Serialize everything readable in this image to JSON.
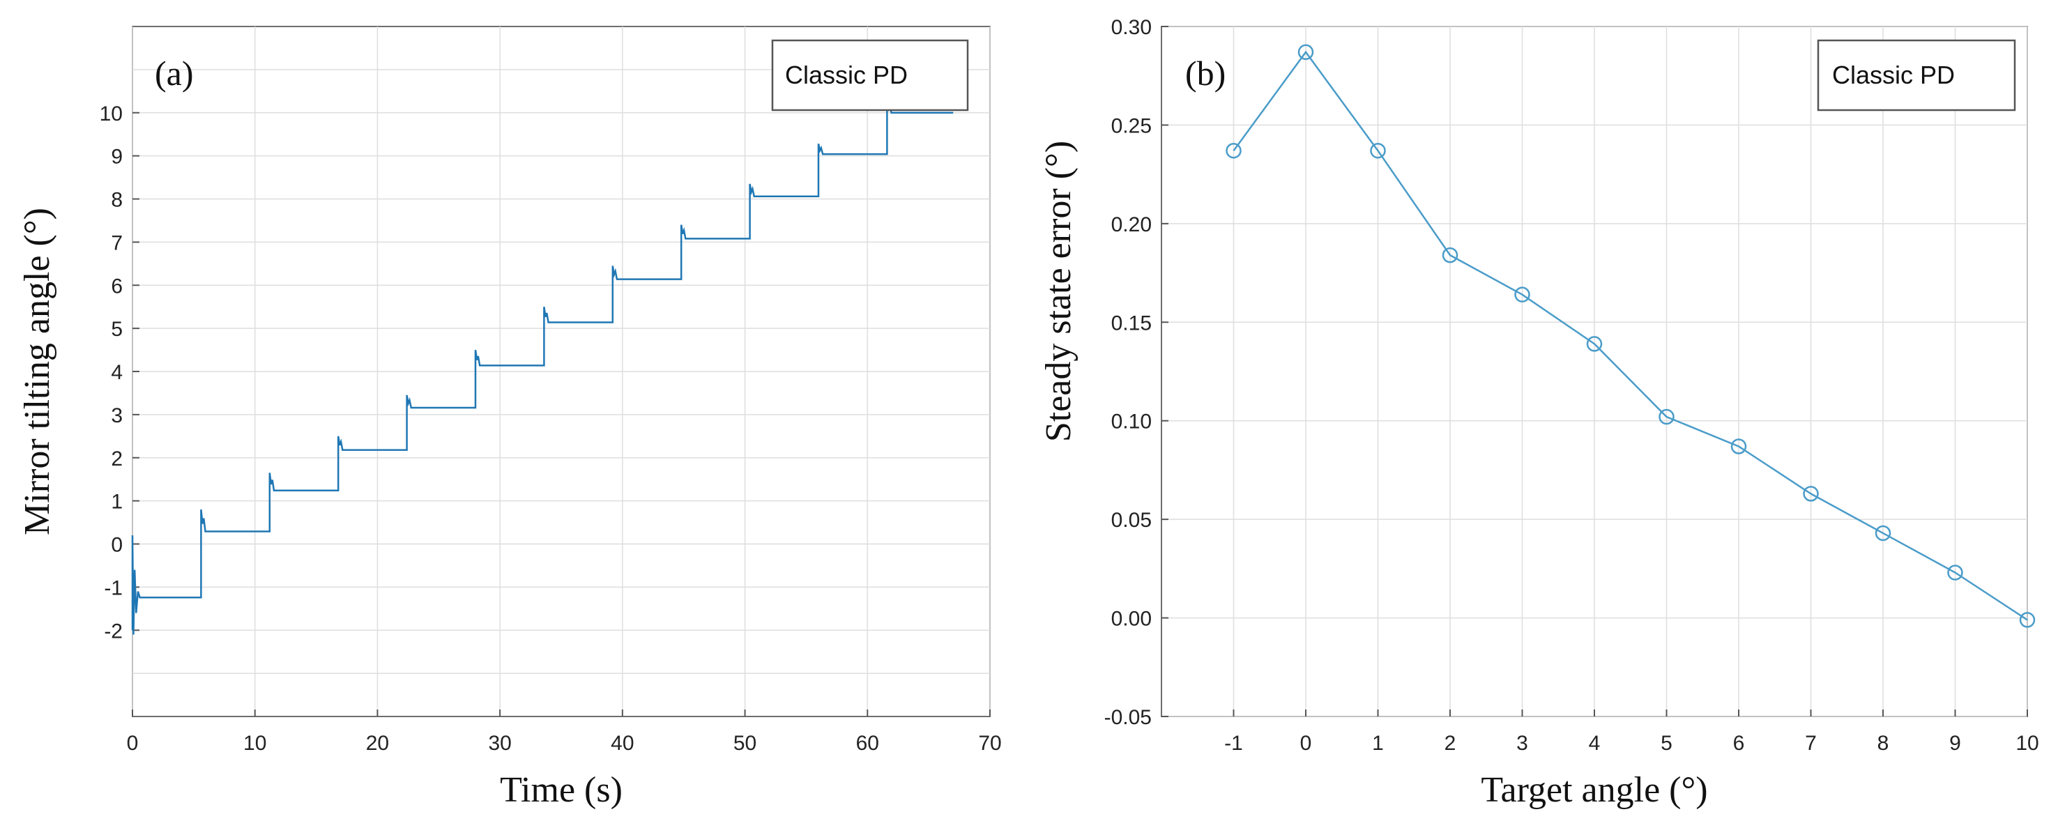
{
  "chart_data": [
    {
      "type": "line",
      "panel_label": "(a)",
      "legend": [
        "Classic PD"
      ],
      "xlabel": "Time (s)",
      "ylabel": "Mirror tilting angle  (°)",
      "xlim": [
        0,
        70
      ],
      "ylim": [
        -4,
        12
      ],
      "xticks": [
        "0",
        "10",
        "20",
        "30",
        "40",
        "50",
        "60",
        "70"
      ],
      "yticks": [
        "-2",
        "-1",
        "0",
        "1",
        "2",
        "3",
        "4",
        "5",
        "6",
        "7",
        "8",
        "9",
        "10"
      ],
      "series": [
        {
          "name": "Classic PD",
          "color": "#1f77b4",
          "step_times": [
            0,
            5.6,
            11.2,
            16.8,
            22.4,
            28.0,
            33.6,
            39.2,
            44.8,
            50.4,
            56.0,
            61.6
          ],
          "end_time": 67,
          "levels": [
            -1.24,
            0.29,
            1.24,
            2.18,
            3.16,
            4.14,
            5.14,
            6.14,
            7.08,
            8.06,
            9.04,
            10.0
          ],
          "overshoots": [
            0.2,
            0.8,
            1.65,
            2.5,
            3.45,
            4.5,
            5.5,
            6.45,
            7.4,
            8.35,
            9.28,
            10.28
          ]
        }
      ]
    },
    {
      "type": "line",
      "panel_label": "(b)",
      "legend": [
        "Classic PD"
      ],
      "xlabel": "Target angle  (°)",
      "ylabel": "Steady state error  (°)",
      "xlim": [
        -2,
        10
      ],
      "ylim": [
        -0.05,
        0.3
      ],
      "xticks": [
        "-1",
        "0",
        "1",
        "2",
        "3",
        "4",
        "5",
        "6",
        "7",
        "8",
        "9",
        "10"
      ],
      "yticks": [
        "-0.05",
        "0.00",
        "0.05",
        "0.10",
        "0.15",
        "0.20",
        "0.25",
        "0.30"
      ],
      "series": [
        {
          "name": "Classic PD",
          "color": "#4a9cc9",
          "marker": "circle",
          "x": [
            -1,
            0,
            1,
            2,
            3,
            4,
            5,
            6,
            7,
            8,
            9,
            10
          ],
          "y": [
            0.237,
            0.287,
            0.237,
            0.184,
            0.164,
            0.139,
            0.102,
            0.087,
            0.063,
            0.043,
            0.023,
            -0.001
          ]
        }
      ]
    }
  ]
}
